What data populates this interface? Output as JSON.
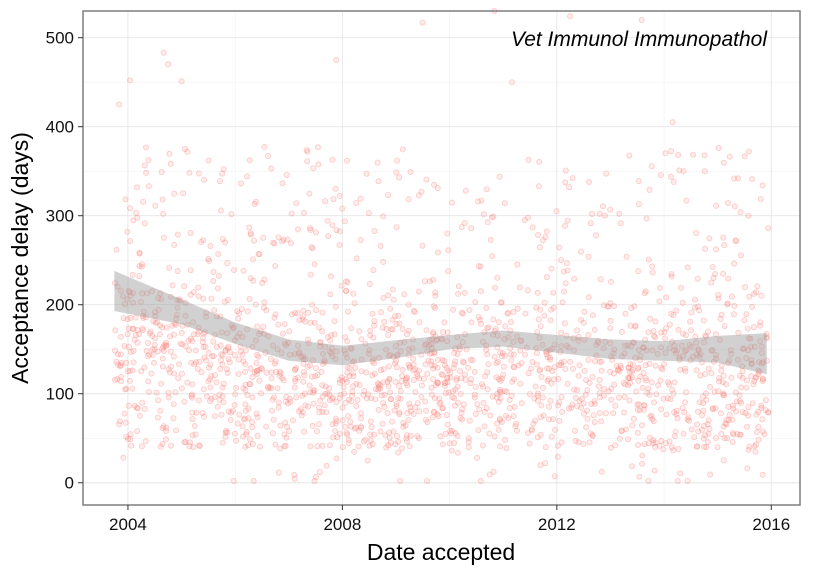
{
  "chart_data": {
    "type": "scatter",
    "title": "",
    "annotation": "Vet Immunol Immunopathol",
    "xlabel": "Date accepted",
    "ylabel": "Acceptance delay (days)",
    "x_ticks": [
      "2004",
      "2008",
      "2012",
      "2016"
    ],
    "y_ticks": [
      "0",
      "100",
      "200",
      "300",
      "400",
      "500"
    ],
    "xlim": [
      "2003-03-01",
      "2016-07-15"
    ],
    "ylim": [
      -25,
      530
    ],
    "grid": true,
    "point_color": "#F8766D",
    "point_opacity": 0.25,
    "smooth_band_color": "#999999",
    "n_points": 1900,
    "sample_points": [
      [
        "2003-11-01",
        425
      ],
      [
        "2004-01-15",
        452
      ],
      [
        "2004-09-01",
        483
      ],
      [
        "2004-10-01",
        470
      ],
      [
        "2005-01-01",
        451
      ],
      [
        "2007-11-20",
        475
      ],
      [
        "2009-07-01",
        517
      ],
      [
        "2010-11-01",
        530
      ],
      [
        "2012-04-01",
        524
      ],
      [
        "2013-08-01",
        520
      ],
      [
        "2011-03-01",
        450
      ],
      [
        "2014-03-01",
        405
      ],
      [
        "2009-08-01",
        2
      ],
      [
        "2010-08-01",
        2
      ],
      [
        "2003-12-01",
        28
      ],
      [
        "2007-08-01",
        12
      ]
    ],
    "smooth_fit": {
      "x": [
        "2003-10-01",
        "2005-01-01",
        "2006-01-01",
        "2007-01-01",
        "2008-01-01",
        "2009-01-01",
        "2010-01-01",
        "2011-01-01",
        "2012-01-01",
        "2013-01-01",
        "2014-01-01",
        "2015-01-01",
        "2015-12-01"
      ],
      "y": [
        215,
        192,
        168,
        149,
        143,
        150,
        158,
        162,
        156,
        150,
        148,
        150,
        145
      ],
      "lower": [
        193,
        178,
        156,
        137,
        132,
        140,
        150,
        153,
        146,
        139,
        137,
        135,
        122
      ],
      "upper": [
        238,
        206,
        180,
        161,
        154,
        160,
        166,
        171,
        166,
        161,
        159,
        165,
        168
      ]
    }
  }
}
